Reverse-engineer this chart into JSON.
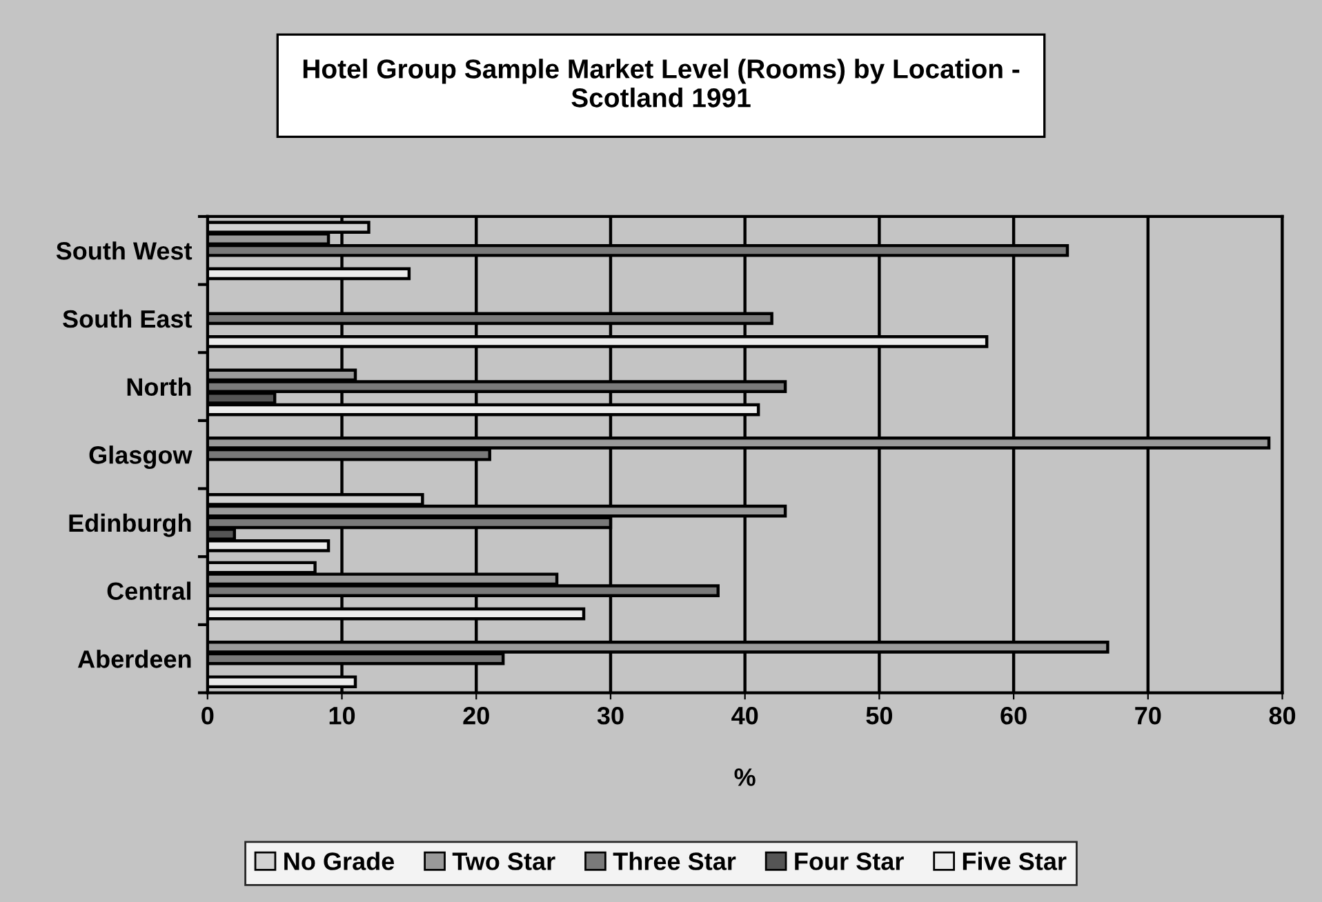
{
  "chart_data": {
    "type": "bar",
    "orientation": "horizontal",
    "title": "Hotel Group Sample Market Level (Rooms) by Location -\nScotland 1991",
    "xlabel": "%",
    "categories": [
      "South West",
      "South East",
      "North",
      "Glasgow",
      "Edinburgh",
      "Central",
      "Aberdeen"
    ],
    "series": [
      {
        "name": "No Grade",
        "color": "#d2d2d2",
        "values": [
          12,
          null,
          null,
          null,
          16,
          8,
          null
        ]
      },
      {
        "name": "Two Star",
        "color": "#9a9a9a",
        "values": [
          9,
          null,
          11,
          79,
          43,
          26,
          67
        ]
      },
      {
        "name": "Three Star",
        "color": "#7a7a7a",
        "values": [
          64,
          42,
          43,
          21,
          30,
          38,
          22
        ]
      },
      {
        "name": "Four Star",
        "color": "#555555",
        "values": [
          null,
          null,
          5,
          null,
          2,
          null,
          null
        ]
      },
      {
        "name": "Five Star",
        "color": "#ececec",
        "values": [
          15,
          58,
          41,
          null,
          9,
          28,
          11
        ]
      }
    ],
    "xlim": [
      0,
      80
    ],
    "xticks": [
      0,
      10,
      20,
      30,
      40,
      50,
      60,
      70,
      80
    ],
    "grid": "x",
    "legend": "bottom"
  }
}
